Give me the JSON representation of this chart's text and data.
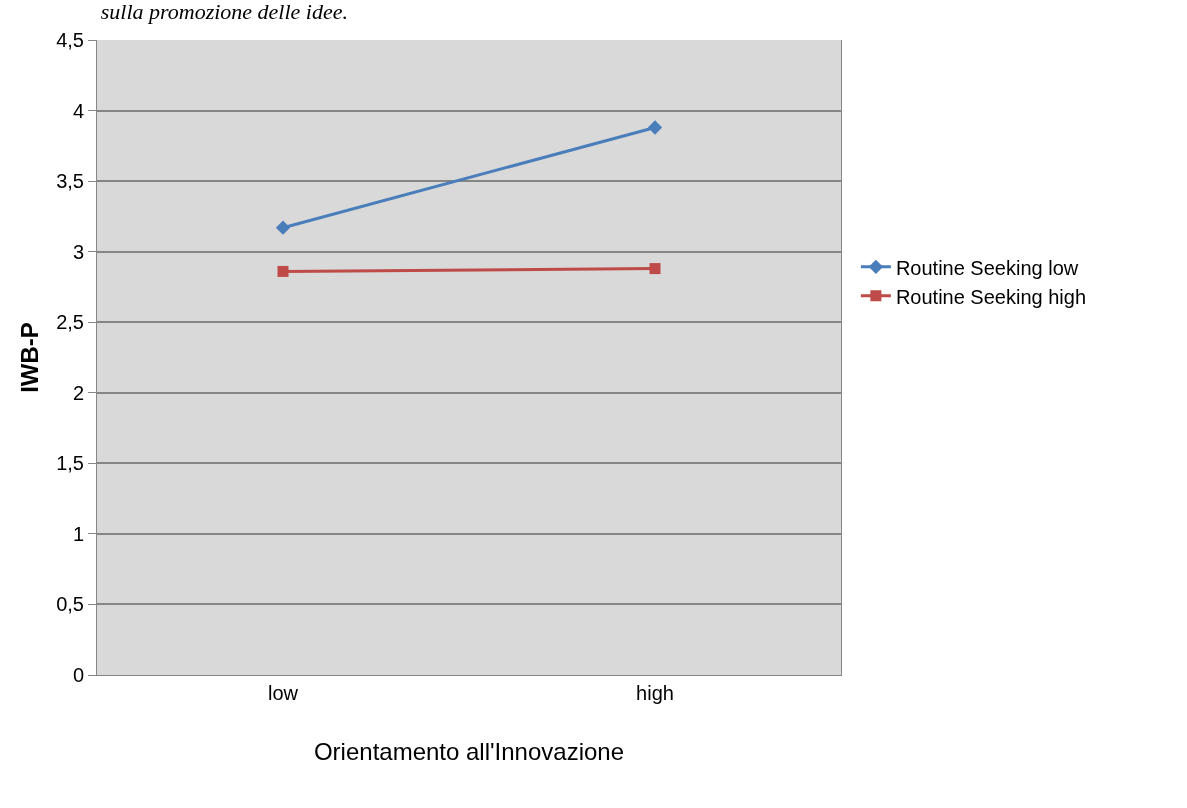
{
  "chart_data": {
    "type": "line",
    "title": "sulla promozione delle idee.",
    "xlabel": "Orientamento all'Innovazione",
    "ylabel": "IWB-P",
    "categories": [
      "low",
      "high"
    ],
    "series": [
      {
        "name": "Routine Seeking low",
        "color": "#4a7ebb",
        "marker": "diamond",
        "values": [
          3.17,
          3.88
        ]
      },
      {
        "name": "Routine Seeking high",
        "color": "#be4b48",
        "marker": "square",
        "values": [
          2.86,
          2.88
        ]
      }
    ],
    "ylim": [
      0,
      4.5
    ],
    "yticks": [
      0,
      {
        "value": 0.5,
        "label": "0,5"
      },
      1,
      {
        "value": 1.5,
        "label": "1,5"
      },
      2,
      {
        "value": 2.5,
        "label": "2,5"
      },
      3,
      {
        "value": 3.5,
        "label": "3,5"
      },
      4,
      {
        "value": 4.5,
        "label": "4,5"
      }
    ],
    "grid": "y",
    "legend": "right",
    "line_style": "solid"
  }
}
